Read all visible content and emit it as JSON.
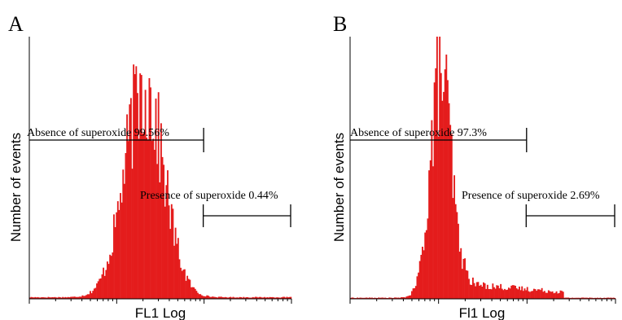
{
  "chart_data": [
    {
      "type": "area",
      "panel": "A",
      "xlabel": "FL1 Log",
      "ylabel": "Number of events",
      "x_scale": "log",
      "color": "#e41c1c",
      "histogram": {
        "bin_count": 200,
        "components": [
          {
            "center_bin": 87,
            "sigma_bins": 15,
            "amplitude": 0.8
          }
        ],
        "baseline": 0.006,
        "tail_start_bin": 0,
        "tail_end_bin": 0,
        "tail_level": 0
      },
      "gates": [
        {
          "label": "Absence of superoxide 99.56%",
          "from_bin": 0,
          "to_bin": 133
        },
        {
          "label": "Presence of superoxide 0.44%",
          "from_bin": 133,
          "to_bin": 200
        }
      ]
    },
    {
      "type": "area",
      "panel": "B",
      "xlabel": "Fl1 Log",
      "ylabel": "Number of events",
      "x_scale": "log",
      "color": "#e41c1c",
      "histogram": {
        "bin_count": 200,
        "components": [
          {
            "center_bin": 68,
            "sigma_bins": 8,
            "amplitude": 0.86
          }
        ],
        "baseline": 0.004,
        "tail_start_bin": 80,
        "tail_end_bin": 160,
        "tail_level": 0.055
      },
      "gates": [
        {
          "label": "Absence of superoxide 97.3%",
          "from_bin": 0,
          "to_bin": 133
        },
        {
          "label": "Presence of superoxide 2.69%",
          "from_bin": 133,
          "to_bin": 200
        }
      ]
    }
  ]
}
